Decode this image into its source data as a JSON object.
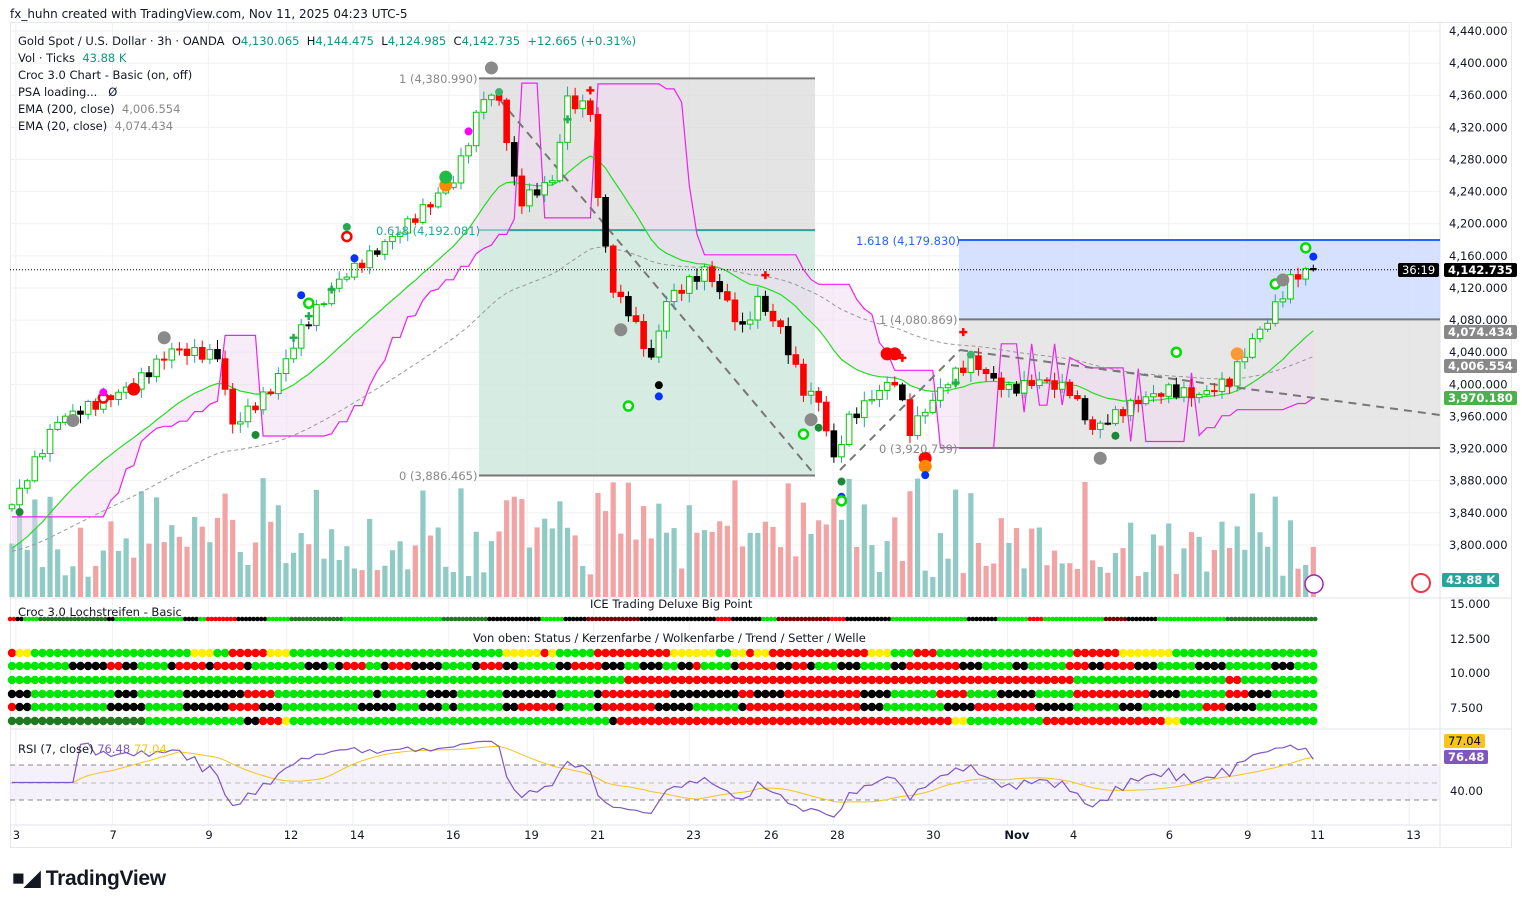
{
  "credit": "fx_huhn created with TradingView.com, Nov 11, 2025 04:23 UTC-5",
  "legend": {
    "symbol": "Gold Spot / U.S. Dollar · 3h · OANDA",
    "o_label": "O",
    "o": "4,130.065",
    "h_label": "H",
    "h": "4,144.475",
    "l_label": "L",
    "l": "4,124.985",
    "c_label": "C",
    "c": "4,142.735",
    "change": "+12.665 (+0.31%)",
    "vol_label": "Vol · Ticks",
    "vol": "43.88 K",
    "croc": "Croc 3.0 Chart - Basic (on, off)",
    "psa": "PSA loading...",
    "psa_value": "Ø",
    "ema200_label": "EMA (200, close)",
    "ema200": "4,006.554",
    "ema20_label": "EMA (20, close)",
    "ema20": "4,074.434"
  },
  "fib1": {
    "top": "1 (4,380.990)",
    "mid": "0.618 (4,192.081)",
    "bottom": "0 (3,886.465)"
  },
  "fib2": {
    "ext": "1.618 (4,179.830)",
    "top": "1 (4,080.869)",
    "bottom": "0 (3,920.739)"
  },
  "price_tags": {
    "last": "4,142.735",
    "countdown": "36:19",
    "ema20": "4,074.434",
    "ema200": "4,006.554",
    "level": "3,970.180",
    "volume": "43.88 K",
    "rsi_ma": "77.04",
    "rsi": "76.48"
  },
  "colors": {
    "bull": "#00c800",
    "bear": "#ff0000",
    "ema20": "#22dd22",
    "band": "#ee22ee",
    "fib_blue": "#2962ff",
    "volume_up": "#8fcbc4",
    "volume_down": "#f2a3a3",
    "rsi": "#7e57c2",
    "rsi_ma": "#f5c518"
  },
  "panes": {
    "lochstreifen": "Croc 3.0 Lochstreifen - Basic",
    "ice": "ICE Trading Deluxe Big Point",
    "von_oben": "Von oben: Status / Kerzenfarbe / Wolkenfarbe / Trend / Setter / Welle",
    "axis": [
      "15.000",
      "12.500",
      "10.000",
      "7.500"
    ],
    "rsi_label": "RSI (7, close)",
    "rsi_value": "76.48",
    "rsi_ma_value": "77.04",
    "rsi_axis": "40.00"
  },
  "logo": "TradingView",
  "chart_data": {
    "type": "candlestick",
    "title": "Gold Spot / U.S. Dollar · 3h · OANDA",
    "price_ticks": [
      "4,440.000",
      "4,400.000",
      "4,360.000",
      "4,320.000",
      "4,280.000",
      "4,240.000",
      "4,200.000",
      "4,160.000",
      "4,120.000",
      "4,080.000",
      "4,040.000",
      "4,000.000",
      "3,960.000",
      "3,920.000",
      "3,880.000",
      "3,840.000",
      "3,800.000"
    ],
    "price_tick_values": [
      4440,
      4400,
      4360,
      4320,
      4280,
      4240,
      4200,
      4160,
      4120,
      4080,
      4040,
      4000,
      3960,
      3920,
      3880,
      3840,
      3800
    ],
    "x_ticks": [
      "3",
      "7",
      "9",
      "12",
      "14",
      "16",
      "19",
      "21",
      "23",
      "26",
      "28",
      "30",
      "Nov",
      "4",
      "6",
      "9",
      "11",
      "13"
    ],
    "x_tick_bars": [
      0.5,
      13.2,
      25.8,
      36.1,
      44.8,
      57.4,
      67.7,
      76.4,
      89,
      99.2,
      107.9,
      120.5,
      130.8,
      139.4,
      152,
      162.3,
      171,
      183.6
    ],
    "ylim": [
      3780,
      4450
    ],
    "close_knots": [
      [
        0,
        3850
      ],
      [
        6,
        3956
      ],
      [
        12,
        3980
      ],
      [
        16,
        3999
      ],
      [
        21,
        4043
      ],
      [
        27,
        4036
      ],
      [
        29,
        3949
      ],
      [
        34,
        3993
      ],
      [
        38,
        4068
      ],
      [
        43,
        4130
      ],
      [
        48,
        4167
      ],
      [
        54,
        4217
      ],
      [
        58,
        4254
      ],
      [
        60,
        4304
      ],
      [
        62,
        4360
      ],
      [
        64,
        4354
      ],
      [
        66,
        4254
      ],
      [
        67,
        4229
      ],
      [
        71,
        4254
      ],
      [
        73,
        4354
      ],
      [
        76,
        4342
      ],
      [
        77,
        4229
      ],
      [
        79,
        4117
      ],
      [
        81,
        4092
      ],
      [
        84,
        4030
      ],
      [
        86,
        4105
      ],
      [
        91,
        4142
      ],
      [
        93,
        4117
      ],
      [
        96,
        4068
      ],
      [
        98,
        4105
      ],
      [
        101,
        4068
      ],
      [
        104,
        3993
      ],
      [
        106,
        3980
      ],
      [
        108,
        3906
      ],
      [
        110,
        3956
      ],
      [
        114,
        3993
      ],
      [
        116,
        4005
      ],
      [
        118,
        3943
      ],
      [
        120,
        3968
      ],
      [
        123,
        4005
      ],
      [
        126,
        4030
      ],
      [
        129,
        4005
      ],
      [
        131,
        3993
      ],
      [
        135,
        4005
      ],
      [
        139,
        3993
      ],
      [
        142,
        3943
      ],
      [
        144,
        3956
      ],
      [
        148,
        3980
      ],
      [
        152,
        3993
      ],
      [
        156,
        3986
      ],
      [
        160,
        4005
      ],
      [
        163,
        4055
      ],
      [
        165,
        4080
      ],
      [
        168,
        4130
      ],
      [
        170,
        4142
      ],
      [
        171,
        4142.735
      ]
    ],
    "fib_levels": {
      "fib1": [
        4380.99,
        4192.081,
        3886.465
      ],
      "fib2": [
        4179.83,
        4080.869,
        3920.739
      ]
    },
    "last_price": 4142.735,
    "markers": [
      {
        "bar": 1,
        "price": 3841,
        "kind": "dot",
        "color": "#1a8a3a"
      },
      {
        "bar": 8,
        "price": 3955,
        "kind": "big",
        "color": "#8a8a8a"
      },
      {
        "bar": 12,
        "price": 3983,
        "kind": "ring",
        "color": "#ff0000"
      },
      {
        "bar": 12,
        "price": 3990,
        "kind": "dot",
        "color": "#ff00ff"
      },
      {
        "bar": 16,
        "price": 3994,
        "kind": "big",
        "color": "#ff0000"
      },
      {
        "bar": 20,
        "price": 4058,
        "kind": "big",
        "color": "#8a8a8a"
      },
      {
        "bar": 32,
        "price": 3937,
        "kind": "dot",
        "color": "#1a8a3a"
      },
      {
        "bar": 37,
        "price": 4058,
        "kind": "cross",
        "color": "#22aa55"
      },
      {
        "bar": 39,
        "price": 4085,
        "kind": "cross",
        "color": "#22aa55"
      },
      {
        "bar": 38,
        "price": 4111,
        "kind": "dot",
        "color": "#0033ff"
      },
      {
        "bar": 39,
        "price": 4101,
        "kind": "ring",
        "color": "#00dd00"
      },
      {
        "bar": 42,
        "price": 4118,
        "kind": "cross",
        "color": "#22aa55"
      },
      {
        "bar": 44,
        "price": 4184,
        "kind": "ring",
        "color": "#ff0000"
      },
      {
        "bar": 44,
        "price": 4196,
        "kind": "dot",
        "color": "#22aa55"
      },
      {
        "bar": 45,
        "price": 4157,
        "kind": "dot",
        "color": "#0033ff"
      },
      {
        "bar": 57,
        "price": 4248,
        "kind": "big",
        "color": "#ff8800"
      },
      {
        "bar": 57,
        "price": 4258,
        "kind": "big",
        "color": "#22bb44"
      },
      {
        "bar": 60,
        "price": 4315,
        "kind": "dot",
        "color": "#ff00ff"
      },
      {
        "bar": 63,
        "price": 4394,
        "kind": "big",
        "color": "#8a8a8a"
      },
      {
        "bar": 64,
        "price": 4364,
        "kind": "dot",
        "color": "#3cb371"
      },
      {
        "bar": 73,
        "price": 4330,
        "kind": "cross",
        "color": "#22aa55"
      },
      {
        "bar": 76,
        "price": 4366,
        "kind": "cross",
        "color": "#ff0000"
      },
      {
        "bar": 80,
        "price": 4068,
        "kind": "big",
        "color": "#8a8a8a"
      },
      {
        "bar": 81,
        "price": 3973,
        "kind": "ring",
        "color": "#00dd00"
      },
      {
        "bar": 85,
        "price": 3999,
        "kind": "dot",
        "color": "#000000"
      },
      {
        "bar": 85,
        "price": 3985,
        "kind": "dot",
        "color": "#0033ff"
      },
      {
        "bar": 99,
        "price": 4136,
        "kind": "cross",
        "color": "#ff0000"
      },
      {
        "bar": 104,
        "price": 3938,
        "kind": "ring",
        "color": "#00dd00"
      },
      {
        "bar": 105,
        "price": 3956,
        "kind": "big",
        "color": "#8a8a8a"
      },
      {
        "bar": 106,
        "price": 3946,
        "kind": "dot",
        "color": "#1a8a3a"
      },
      {
        "bar": 109,
        "price": 3879,
        "kind": "dot",
        "color": "#1a8a3a"
      },
      {
        "bar": 109,
        "price": 3860,
        "kind": "dot",
        "color": "#0033ff"
      },
      {
        "bar": 109,
        "price": 3855,
        "kind": "ring",
        "color": "#00dd00"
      },
      {
        "bar": 115,
        "price": 4038,
        "kind": "big",
        "color": "#ff0000"
      },
      {
        "bar": 116,
        "price": 4038,
        "kind": "big",
        "color": "#ff0000"
      },
      {
        "bar": 117,
        "price": 4033,
        "kind": "cross",
        "color": "#ff0000"
      },
      {
        "bar": 120,
        "price": 3908,
        "kind": "big",
        "color": "#ff0000"
      },
      {
        "bar": 120,
        "price": 3898,
        "kind": "big",
        "color": "#ff8800"
      },
      {
        "bar": 120,
        "price": 3887,
        "kind": "dot",
        "color": "#0033ff"
      },
      {
        "bar": 125,
        "price": 4065,
        "kind": "cross",
        "color": "#ff0000"
      },
      {
        "bar": 126,
        "price": 4037,
        "kind": "dot",
        "color": "#3cb371"
      },
      {
        "bar": 124,
        "price": 4002,
        "kind": "cross",
        "color": "#22aa55"
      },
      {
        "bar": 143,
        "price": 3908,
        "kind": "big",
        "color": "#8a8a8a"
      },
      {
        "bar": 145,
        "price": 3936,
        "kind": "dot",
        "color": "#1a8a3a"
      },
      {
        "bar": 153,
        "price": 4040,
        "kind": "ring",
        "color": "#00dd00"
      },
      {
        "bar": 161,
        "price": 4038,
        "kind": "big",
        "color": "#ff9933"
      },
      {
        "bar": 166,
        "price": 4125,
        "kind": "ring",
        "color": "#00dd00"
      },
      {
        "bar": 167,
        "price": 4130,
        "kind": "big",
        "color": "#8a8a8a"
      },
      {
        "bar": 170,
        "price": 4170,
        "kind": "ring",
        "color": "#00dd00"
      },
      {
        "bar": 171,
        "price": 4159,
        "kind": "dot",
        "color": "#0033ff"
      }
    ],
    "dot_rows": {
      "lochstreifen": "R1,K1,G2,D9,K1,G9,K2,G1,R4,K4,G3,D7,G13,D6,K7,G3,K3,M7,K10,R2,K4,G2,M7,R2,K6,G10,K4,G4,R2,G8,M3,K4,G9,D12",
      "status": "R1,Y2,G21,Y3,G2,R5,Y3,G28,Y5,R1,Y1,G5,R10,Y6,G2,Y2,R1,Y2,R13,Y3,G3,R3,G18,R6,Y7,G19",
      "kerzenfarbe": "G8,K5,R2,K2,G4,K1,R4,K1,R4,K1,G7,K3,G1,K1,R3,G2,K1,R3,K4,G4,K1,R3,K2,G5,K2,R4,K3,G2,K1,K2,G2,K2,R1,G4,K1,R5,K2,R2,K1,G3,K3,G4,K2,R7,K3,G4,K2,G5,R3,K2,R4,K3,G5,K4,G6,K3,G8",
      "wolkenfarbe": "G81,R59,G20,R2,G10",
      "trend": "K3,G11,K3,G6,K8,R4,G13,K1,G6,K4,G6,K7,G5,K1,R9,K9,R2,K4,R10,K4,G6,R4,G4,K5,G5,R10,K4,G6,R3,K3,G20",
      "setter": "R1,K2,G10,K5,G5,K6,R4,K3,G10,K5,G3,K3,G1,K1,G6,K2,R5,K1,G4,K1,R7,K5,G6,K1,R15,K3,G8,K4,R8,K5,G6,K3,G8,R3,K4,G20",
      "welle": "D18,G13,K2,R3,Y1,G42,K1,R44,Y2,G10,R16,Y2,G18"
    },
    "dot_colors": {
      "G": "#00e600",
      "D": "#1f7a1f",
      "R": "#ff0000",
      "K": "#000000",
      "Y": "#ffee00",
      "M": "#7a0000"
    }
  }
}
